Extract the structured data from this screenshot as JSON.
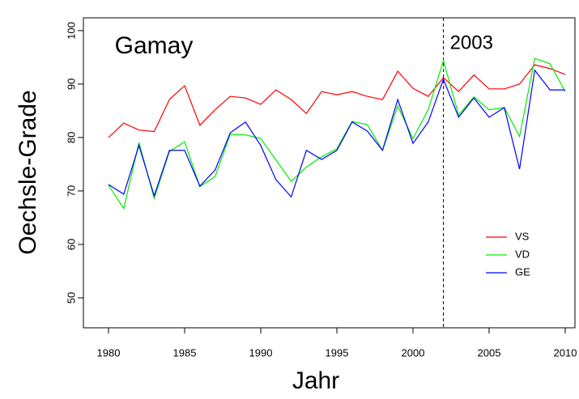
{
  "chart_data": {
    "type": "line",
    "title": "Gamay",
    "annotation": "2003",
    "vline": 2002,
    "x_label": "Jahr",
    "y_label": "Oechsle-Grade",
    "x": [
      1980,
      1981,
      1982,
      1983,
      1984,
      1985,
      1986,
      1987,
      1988,
      1989,
      1990,
      1991,
      1992,
      1993,
      1994,
      1995,
      1996,
      1997,
      1998,
      1999,
      2000,
      2001,
      2002,
      2003,
      2004,
      2005,
      2006,
      2007,
      2008,
      2009,
      2010
    ],
    "series": [
      {
        "name": "VS",
        "color": "#ff0000",
        "values": [
          80,
          82.7,
          81.4,
          81.1,
          87.1,
          89.7,
          82.3,
          85.2,
          87.7,
          87.4,
          86.2,
          88.9,
          87.1,
          84.5,
          88.6,
          88,
          88.6,
          87.7,
          87.1,
          92.4,
          89.2,
          87.7,
          91.2,
          88.6,
          91.7,
          89.1,
          89.1,
          90,
          93.6,
          92.9,
          91.8
        ]
      },
      {
        "name": "VD",
        "color": "#00ee00",
        "values": [
          71.1,
          66.7,
          79.1,
          68.6,
          77.4,
          79.2,
          70.8,
          72.7,
          80.6,
          80.5,
          79.8,
          75.8,
          71.8,
          74.5,
          76.4,
          77.9,
          83,
          82.4,
          77.6,
          85.9,
          79.8,
          85.2,
          94.4,
          84.2,
          87.6,
          85.2,
          85.6,
          80.2,
          94.8,
          93.8,
          88.6
        ]
      },
      {
        "name": "GE",
        "color": "#0000ff",
        "values": [
          71.2,
          69.4,
          78.5,
          69.1,
          77.6,
          77.6,
          70.9,
          73.9,
          80.9,
          82.9,
          78.5,
          72.1,
          68.9,
          77.6,
          75.9,
          77.6,
          82.9,
          81.2,
          77.6,
          87.1,
          78.9,
          82.9,
          90.9,
          83.8,
          87.4,
          83.8,
          85.6,
          74.1,
          92.6,
          88.9,
          88.9
        ]
      }
    ],
    "xlim": [
      1978.35,
      2010.64
    ],
    "ylim": [
      44.4,
      102.4
    ],
    "xticks": [
      1980,
      1985,
      1990,
      1995,
      2000,
      2005,
      2010
    ],
    "yticks": [
      50,
      60,
      70,
      80,
      90,
      100
    ],
    "legend": "lower-right"
  }
}
